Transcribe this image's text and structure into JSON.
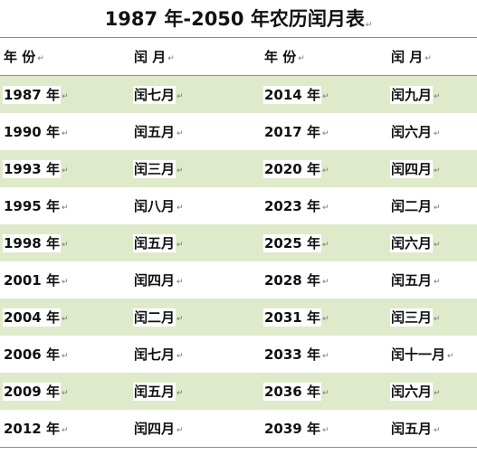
{
  "title": "1987 年-2050 年农历闰月表",
  "mark": "↵",
  "header": {
    "year_a": "年  份",
    "month_a": "闰  月",
    "year_b": "年  份",
    "month_b": "闰  月"
  },
  "rows": [
    {
      "year_a": "1987 年",
      "month_a": "闰七月",
      "year_b": "2014 年",
      "month_b": "闰九月"
    },
    {
      "year_a": "1990 年",
      "month_a": "闰五月",
      "year_b": "2017 年",
      "month_b": "闰六月"
    },
    {
      "year_a": "1993 年",
      "month_a": "闰三月",
      "year_b": "2020 年",
      "month_b": "闰四月"
    },
    {
      "year_a": "1995 年",
      "month_a": "闰八月",
      "year_b": "2023 年",
      "month_b": "闰二月"
    },
    {
      "year_a": "1998 年",
      "month_a": "闰五月",
      "year_b": "2025 年",
      "month_b": "闰六月"
    },
    {
      "year_a": "2001 年",
      "month_a": "闰四月",
      "year_b": "2028 年",
      "month_b": "闰五月"
    },
    {
      "year_a": "2004 年",
      "month_a": "闰二月",
      "year_b": "2031 年",
      "month_b": "闰三月"
    },
    {
      "year_a": "2006 年",
      "month_a": "闰七月",
      "year_b": "2033 年",
      "month_b": "闰十一月"
    },
    {
      "year_a": "2009 年",
      "month_a": "闰五月",
      "year_b": "2036 年",
      "month_b": "闰六月"
    },
    {
      "year_a": "2012 年",
      "month_a": "闰四月",
      "year_b": "2039 年",
      "month_b": "闰五月"
    }
  ]
}
